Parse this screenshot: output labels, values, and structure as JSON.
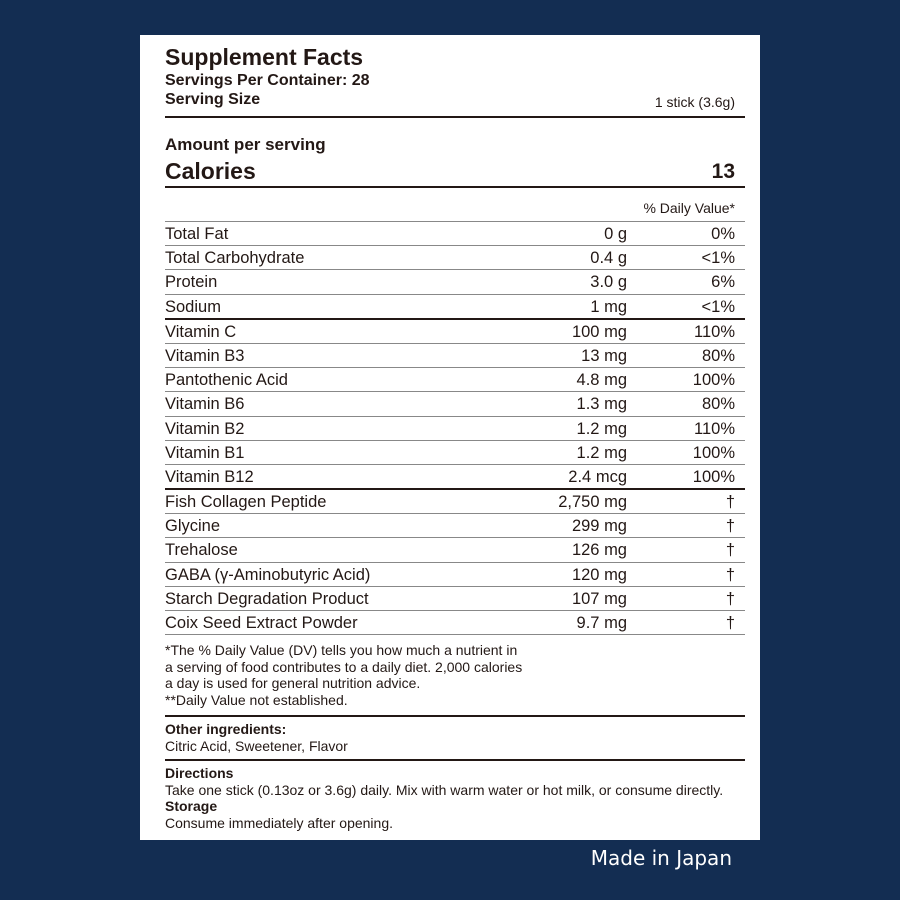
{
  "title": "Supplement Facts",
  "servings_per_container": "Servings Per Container: 28",
  "serving_size_label": "Serving Size",
  "serving_size_value": "1 stick (3.6g)",
  "amount_per_serving": "Amount per serving",
  "calories_label": "Calories",
  "calories_value": "13",
  "dv_header": "% Daily Value*",
  "rows": [
    {
      "name": "Total Fat",
      "amount": "0 g",
      "dv": "0%"
    },
    {
      "name": "Total Carbohydrate",
      "amount": "0.4 g",
      "dv": "<1%"
    },
    {
      "name": "Protein",
      "amount": "3.0 g",
      "dv": "6%"
    },
    {
      "name": "Sodium",
      "amount": "1 mg",
      "dv": "<1%"
    },
    {
      "name": "Vitamin C",
      "amount": "100 mg",
      "dv": "110%"
    },
    {
      "name": "Vitamin B3",
      "amount": "13 mg",
      "dv": "80%"
    },
    {
      "name": "Pantothenic Acid",
      "amount": "4.8 mg",
      "dv": "100%"
    },
    {
      "name": "Vitamin B6",
      "amount": "1.3 mg",
      "dv": "80%"
    },
    {
      "name": "Vitamin B2",
      "amount": "1.2 mg",
      "dv": "110%"
    },
    {
      "name": "Vitamin B1",
      "amount": "1.2 mg",
      "dv": "100%"
    },
    {
      "name": "Vitamin B12",
      "amount": "2.4 mcg",
      "dv": "100%"
    },
    {
      "name": "Fish Collagen Peptide",
      "amount": "2,750 mg",
      "dv": "†"
    },
    {
      "name": "Glycine",
      "amount": "299 mg",
      "dv": "†"
    },
    {
      "name": "Trehalose",
      "amount": "126 mg",
      "dv": "†"
    },
    {
      "name": "GABA (γ-Aminobutyric Acid)",
      "amount": "120 mg",
      "dv": "†"
    },
    {
      "name": "Starch Degradation Product",
      "amount": "107 mg",
      "dv": "†"
    },
    {
      "name": "Coix Seed Extract Powder",
      "amount": "9.7 mg",
      "dv": "†"
    }
  ],
  "footnote": [
    "*The % Daily Value (DV) tells you how much a nutrient in",
    "a serving of food contributes to a daily diet. 2,000 calories",
    "a day is used for general nutrition advice.",
    "**Daily Value not established."
  ],
  "other_ingredients_label": "Other ingredients:",
  "other_ingredients": "Citric Acid, Sweetener, Flavor",
  "directions_label": "Directions",
  "directions": "Take one stick (0.13oz or 3.6g) daily. Mix with warm water or hot milk, or consume directly.",
  "storage_label": "Storage",
  "storage": "Consume immediately after opening.",
  "made_in": "Made in Japan",
  "colors": {
    "background": "#132d52",
    "panel": "#ffffff",
    "text": "#231815"
  }
}
